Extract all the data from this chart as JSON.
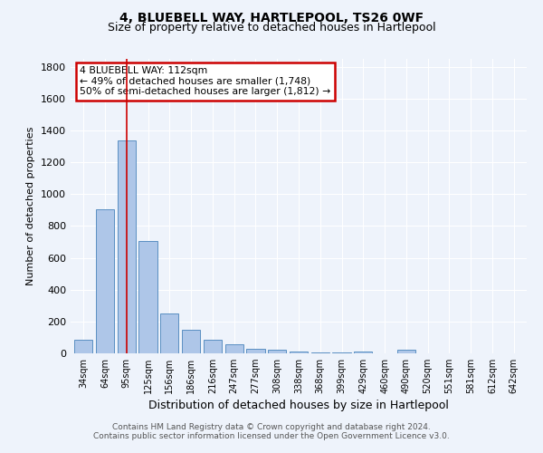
{
  "title1": "4, BLUEBELL WAY, HARTLEPOOL, TS26 0WF",
  "title2": "Size of property relative to detached houses in Hartlepool",
  "xlabel": "Distribution of detached houses by size in Hartlepool",
  "ylabel": "Number of detached properties",
  "categories": [
    "34sqm",
    "64sqm",
    "95sqm",
    "125sqm",
    "156sqm",
    "186sqm",
    "216sqm",
    "247sqm",
    "277sqm",
    "308sqm",
    "338sqm",
    "368sqm",
    "399sqm",
    "429sqm",
    "460sqm",
    "490sqm",
    "520sqm",
    "551sqm",
    "581sqm",
    "612sqm",
    "642sqm"
  ],
  "values": [
    85,
    905,
    1340,
    705,
    248,
    148,
    83,
    57,
    30,
    20,
    13,
    8,
    5,
    13,
    0,
    20,
    0,
    0,
    0,
    0,
    0
  ],
  "bar_color": "#aec6e8",
  "bar_edge_color": "#5a8fc2",
  "background_color": "#eef3fb",
  "grid_color": "#ffffff",
  "vline_x": 2,
  "vline_color": "#cc0000",
  "annotation_line1": "4 BLUEBELL WAY: 112sqm",
  "annotation_line2": "← 49% of detached houses are smaller (1,748)",
  "annotation_line3": "50% of semi-detached houses are larger (1,812) →",
  "annotation_box_color": "#ffffff",
  "annotation_box_edge": "#cc0000",
  "ylim": [
    0,
    1850
  ],
  "yticks": [
    0,
    200,
    400,
    600,
    800,
    1000,
    1200,
    1400,
    1600,
    1800
  ],
  "footer_line1": "Contains HM Land Registry data © Crown copyright and database right 2024.",
  "footer_line2": "Contains public sector information licensed under the Open Government Licence v3.0."
}
